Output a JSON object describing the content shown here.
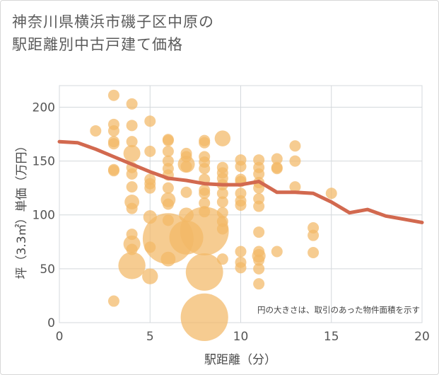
{
  "title_line1": "神奈川県横浜市磯子区中原の",
  "title_line2": "駅距離別中古戸建て価格",
  "chart_data": {
    "type": "scatter",
    "xlabel": "駅距離（分）",
    "ylabel": "坪（3.3㎡）単価（万円）",
    "note": "円の大きさは、取引のあった物件面積を示す",
    "xlim": [
      0,
      20
    ],
    "ylim": [
      0,
      220
    ],
    "x_ticks": [
      0,
      5,
      10,
      15,
      20
    ],
    "y_ticks": [
      0,
      50,
      100,
      150,
      200
    ],
    "grid": true,
    "colors": {
      "bubble": "#f2b867",
      "line": "#d2694f"
    },
    "trend_line": {
      "x": [
        0,
        1,
        2,
        3,
        4,
        5,
        6,
        7,
        8,
        9,
        10,
        11,
        12,
        13,
        14,
        15,
        16,
        17,
        18,
        19,
        20
      ],
      "y": [
        168,
        167,
        161,
        154,
        147,
        140,
        134,
        132,
        129,
        128,
        128,
        131,
        121,
        121,
        120,
        112,
        102,
        105,
        99,
        96,
        93
      ]
    },
    "points": [
      {
        "x": 2,
        "y": 178,
        "s": 1
      },
      {
        "x": 3,
        "y": 211,
        "s": 1
      },
      {
        "x": 3,
        "y": 184,
        "s": 1
      },
      {
        "x": 3,
        "y": 178,
        "s": 1
      },
      {
        "x": 3,
        "y": 168,
        "s": 1
      },
      {
        "x": 3,
        "y": 166,
        "s": 1
      },
      {
        "x": 3,
        "y": 142,
        "s": 1
      },
      {
        "x": 3,
        "y": 141,
        "s": 1
      },
      {
        "x": 3,
        "y": 20,
        "s": 1
      },
      {
        "x": 4,
        "y": 203,
        "s": 1
      },
      {
        "x": 4,
        "y": 183,
        "s": 1
      },
      {
        "x": 4,
        "y": 168,
        "s": 1
      },
      {
        "x": 4,
        "y": 157,
        "s": 1.5
      },
      {
        "x": 4,
        "y": 144,
        "s": 1
      },
      {
        "x": 4,
        "y": 138,
        "s": 1
      },
      {
        "x": 4,
        "y": 126,
        "s": 1
      },
      {
        "x": 4,
        "y": 112,
        "s": 1.3
      },
      {
        "x": 4,
        "y": 106,
        "s": 1
      },
      {
        "x": 4,
        "y": 82,
        "s": 1
      },
      {
        "x": 4,
        "y": 73,
        "s": 1.5
      },
      {
        "x": 4,
        "y": 68,
        "s": 1
      },
      {
        "x": 4,
        "y": 53,
        "s": 2.4
      },
      {
        "x": 5,
        "y": 187,
        "s": 1
      },
      {
        "x": 5,
        "y": 159,
        "s": 1
      },
      {
        "x": 5,
        "y": 133,
        "s": 1
      },
      {
        "x": 5,
        "y": 129,
        "s": 1
      },
      {
        "x": 5,
        "y": 125,
        "s": 1
      },
      {
        "x": 5,
        "y": 98,
        "s": 1.2
      },
      {
        "x": 5,
        "y": 70,
        "s": 1
      },
      {
        "x": 5,
        "y": 43,
        "s": 1.4
      },
      {
        "x": 6,
        "y": 170,
        "s": 1
      },
      {
        "x": 6,
        "y": 169,
        "s": 1
      },
      {
        "x": 6,
        "y": 159,
        "s": 1
      },
      {
        "x": 6,
        "y": 150,
        "s": 1
      },
      {
        "x": 6,
        "y": 143,
        "s": 1
      },
      {
        "x": 6,
        "y": 137,
        "s": 1
      },
      {
        "x": 6,
        "y": 125,
        "s": 1
      },
      {
        "x": 6,
        "y": 114,
        "s": 1.3
      },
      {
        "x": 6,
        "y": 110,
        "s": 1
      },
      {
        "x": 6,
        "y": 95,
        "s": 1
      },
      {
        "x": 6,
        "y": 78,
        "s": 4.5
      },
      {
        "x": 6,
        "y": 59,
        "s": 1.3
      },
      {
        "x": 7,
        "y": 157,
        "s": 1
      },
      {
        "x": 7,
        "y": 154,
        "s": 1
      },
      {
        "x": 7,
        "y": 147,
        "s": 1.5
      },
      {
        "x": 7,
        "y": 145,
        "s": 1
      },
      {
        "x": 7,
        "y": 121,
        "s": 1
      },
      {
        "x": 7,
        "y": 100,
        "s": 1.3
      },
      {
        "x": 7,
        "y": 79,
        "s": 3
      },
      {
        "x": 8,
        "y": 169,
        "s": 1
      },
      {
        "x": 8,
        "y": 167,
        "s": 1
      },
      {
        "x": 8,
        "y": 154,
        "s": 1
      },
      {
        "x": 8,
        "y": 149,
        "s": 1
      },
      {
        "x": 8,
        "y": 143,
        "s": 1
      },
      {
        "x": 8,
        "y": 133,
        "s": 1
      },
      {
        "x": 8,
        "y": 123,
        "s": 1
      },
      {
        "x": 8,
        "y": 120,
        "s": 1
      },
      {
        "x": 8,
        "y": 111,
        "s": 1
      },
      {
        "x": 8,
        "y": 103,
        "s": 1
      },
      {
        "x": 8,
        "y": 85,
        "s": 4.3
      },
      {
        "x": 8,
        "y": 47,
        "s": 3.3
      },
      {
        "x": 8,
        "y": 5,
        "s": 4.2
      },
      {
        "x": 9,
        "y": 171,
        "s": 1.4
      },
      {
        "x": 9,
        "y": 144,
        "s": 1
      },
      {
        "x": 9,
        "y": 139,
        "s": 1
      },
      {
        "x": 9,
        "y": 134,
        "s": 1
      },
      {
        "x": 9,
        "y": 128,
        "s": 1
      },
      {
        "x": 9,
        "y": 120,
        "s": 1
      },
      {
        "x": 9,
        "y": 112,
        "s": 1
      },
      {
        "x": 9,
        "y": 102,
        "s": 1
      },
      {
        "x": 9,
        "y": 94,
        "s": 1
      },
      {
        "x": 9,
        "y": 87,
        "s": 1
      },
      {
        "x": 9,
        "y": 59,
        "s": 1
      },
      {
        "x": 10,
        "y": 151,
        "s": 1
      },
      {
        "x": 10,
        "y": 145,
        "s": 1
      },
      {
        "x": 10,
        "y": 133,
        "s": 1
      },
      {
        "x": 10,
        "y": 131,
        "s": 1
      },
      {
        "x": 10,
        "y": 120,
        "s": 1
      },
      {
        "x": 10,
        "y": 113,
        "s": 1
      },
      {
        "x": 10,
        "y": 109,
        "s": 1
      },
      {
        "x": 10,
        "y": 66,
        "s": 1
      },
      {
        "x": 10,
        "y": 56,
        "s": 1
      },
      {
        "x": 10,
        "y": 51,
        "s": 1
      },
      {
        "x": 11,
        "y": 151,
        "s": 1
      },
      {
        "x": 11,
        "y": 144,
        "s": 1
      },
      {
        "x": 11,
        "y": 138,
        "s": 1
      },
      {
        "x": 11,
        "y": 130,
        "s": 1
      },
      {
        "x": 11,
        "y": 125,
        "s": 1
      },
      {
        "x": 11,
        "y": 115,
        "s": 1
      },
      {
        "x": 11,
        "y": 108,
        "s": 1
      },
      {
        "x": 11,
        "y": 84,
        "s": 1
      },
      {
        "x": 11,
        "y": 66,
        "s": 1
      },
      {
        "x": 11,
        "y": 62,
        "s": 1.2
      },
      {
        "x": 11,
        "y": 58,
        "s": 1
      },
      {
        "x": 11,
        "y": 50,
        "s": 1
      },
      {
        "x": 11,
        "y": 36,
        "s": 1
      },
      {
        "x": 12,
        "y": 152,
        "s": 1
      },
      {
        "x": 12,
        "y": 144,
        "s": 1
      },
      {
        "x": 12,
        "y": 143,
        "s": 1
      },
      {
        "x": 12,
        "y": 66,
        "s": 1
      },
      {
        "x": 13,
        "y": 164,
        "s": 1
      },
      {
        "x": 13,
        "y": 150,
        "s": 1
      },
      {
        "x": 13,
        "y": 126,
        "s": 1
      },
      {
        "x": 14,
        "y": 88,
        "s": 1
      },
      {
        "x": 14,
        "y": 81,
        "s": 1
      },
      {
        "x": 14,
        "y": 65,
        "s": 1
      },
      {
        "x": 15,
        "y": 120,
        "s": 1
      }
    ]
  }
}
